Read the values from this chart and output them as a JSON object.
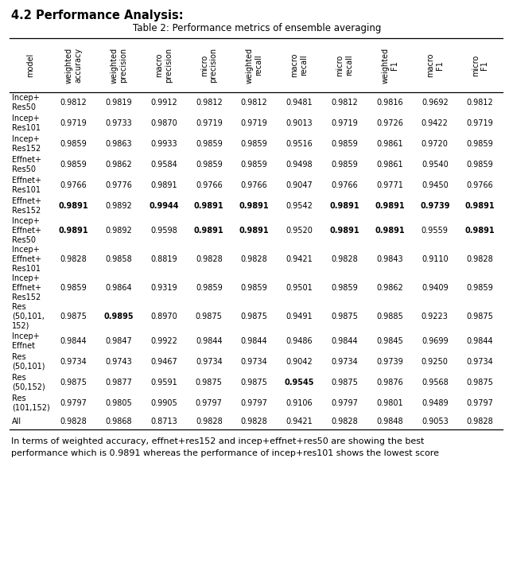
{
  "title_section": "4.2 Performance Analysis:",
  "table_title": "Table 2: Performance metrics of ensemble averaging",
  "col_headers": [
    "model",
    "weighted\naccuracy",
    "weighted\nprecision",
    "macro\nprecision",
    "micro\nprecision",
    "weighted\nrecall",
    "macro\nrecall",
    "micro\nrecall",
    "weighted\nF1",
    "macro\nF1",
    "micro\nF1"
  ],
  "rows": [
    {
      "model": "Incep+\nRes50",
      "values": [
        "0.9812",
        "0.9819",
        "0.9912",
        "0.9812",
        "0.9812",
        "0.9481",
        "0.9812",
        "0.9816",
        "0.9692",
        "0.9812"
      ],
      "bold": []
    },
    {
      "model": "Incep+\nRes101",
      "values": [
        "0.9719",
        "0.9733",
        "0.9870",
        "0.9719",
        "0.9719",
        "0.9013",
        "0.9719",
        "0.9726",
        "0.9422",
        "0.9719"
      ],
      "bold": []
    },
    {
      "model": "Incep+\nRes152",
      "values": [
        "0.9859",
        "0.9863",
        "0.9933",
        "0.9859",
        "0.9859",
        "0.9516",
        "0.9859",
        "0.9861",
        "0.9720",
        "0.9859"
      ],
      "bold": []
    },
    {
      "model": "Effnet+\nRes50",
      "values": [
        "0.9859",
        "0.9862",
        "0.9584",
        "0.9859",
        "0.9859",
        "0.9498",
        "0.9859",
        "0.9861",
        "0.9540",
        "0.9859"
      ],
      "bold": []
    },
    {
      "model": "Effnet+\nRes101",
      "values": [
        "0.9766",
        "0.9776",
        "0.9891",
        "0.9766",
        "0.9766",
        "0.9047",
        "0.9766",
        "0.9771",
        "0.9450",
        "0.9766"
      ],
      "bold": []
    },
    {
      "model": "Effnet+\nRes152",
      "values": [
        "0.9891",
        "0.9892",
        "0.9944",
        "0.9891",
        "0.9891",
        "0.9542",
        "0.9891",
        "0.9891",
        "0.9739",
        "0.9891"
      ],
      "bold": [
        0,
        2,
        3,
        4,
        6,
        7,
        8,
        9
      ]
    },
    {
      "model": "Incep+\nEffnet+\nRes50",
      "values": [
        "0.9891",
        "0.9892",
        "0.9598",
        "0.9891",
        "0.9891",
        "0.9520",
        "0.9891",
        "0.9891",
        "0.9559",
        "0.9891"
      ],
      "bold": [
        0,
        3,
        4,
        6,
        7,
        9
      ]
    },
    {
      "model": "Incep+\nEffnet+\nRes101",
      "values": [
        "0.9828",
        "0.9858",
        "0.8819",
        "0.9828",
        "0.9828",
        "0.9421",
        "0.9828",
        "0.9843",
        "0.9110",
        "0.9828"
      ],
      "bold": []
    },
    {
      "model": "Incep+\nEffnet+\nRes152",
      "values": [
        "0.9859",
        "0.9864",
        "0.9319",
        "0.9859",
        "0.9859",
        "0.9501",
        "0.9859",
        "0.9862",
        "0.9409",
        "0.9859"
      ],
      "bold": []
    },
    {
      "model": "Res\n(50,101,\n152)",
      "values": [
        "0.9875",
        "0.9895",
        "0.8970",
        "0.9875",
        "0.9875",
        "0.9491",
        "0.9875",
        "0.9885",
        "0.9223",
        "0.9875"
      ],
      "bold": [
        1
      ]
    },
    {
      "model": "Incep+\nEffnet",
      "values": [
        "0.9844",
        "0.9847",
        "0.9922",
        "0.9844",
        "0.9844",
        "0.9486",
        "0.9844",
        "0.9845",
        "0.9699",
        "0.9844"
      ],
      "bold": []
    },
    {
      "model": "Res\n(50,101)",
      "values": [
        "0.9734",
        "0.9743",
        "0.9467",
        "0.9734",
        "0.9734",
        "0.9042",
        "0.9734",
        "0.9739",
        "0.9250",
        "0.9734"
      ],
      "bold": []
    },
    {
      "model": "Res\n(50,152)",
      "values": [
        "0.9875",
        "0.9877",
        "0.9591",
        "0.9875",
        "0.9875",
        "0.9545",
        "0.9875",
        "0.9876",
        "0.9568",
        "0.9875"
      ],
      "bold": [
        5
      ]
    },
    {
      "model": "Res\n(101,152)",
      "values": [
        "0.9797",
        "0.9805",
        "0.9905",
        "0.9797",
        "0.9797",
        "0.9106",
        "0.9797",
        "0.9801",
        "0.9489",
        "0.9797"
      ],
      "bold": []
    },
    {
      "model": "All",
      "values": [
        "0.9828",
        "0.9868",
        "0.8713",
        "0.9828",
        "0.9828",
        "0.9421",
        "0.9828",
        "0.9848",
        "0.9053",
        "0.9828"
      ],
      "bold": []
    }
  ],
  "footer_text": "In terms of weighted accuracy, effnet+res152 and incep+effnet+res50 are showing the best\nperformance which is 0.9891 whereas the performance of incep+res101 shows the lowest score",
  "bg_color": "#ffffff",
  "text_color": "#000000",
  "title_fontsize": 10.5,
  "table_title_fontsize": 8.5,
  "header_fontsize": 7.0,
  "cell_fontsize": 7.0,
  "footer_fontsize": 8.0
}
